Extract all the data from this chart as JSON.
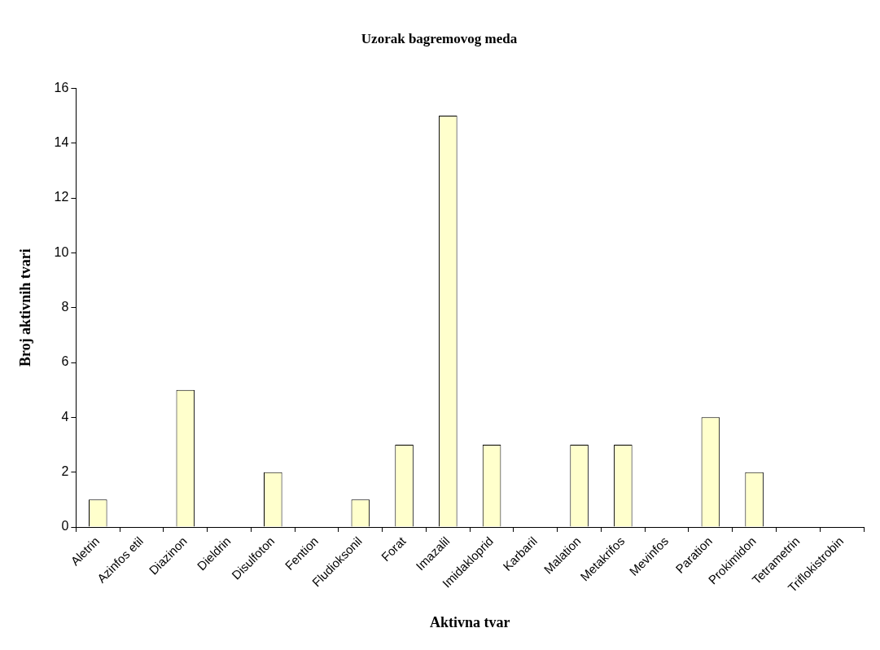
{
  "chart_data": {
    "type": "bar",
    "title": "Uzorak bagremovog meda",
    "xlabel": "Aktivna tvar",
    "ylabel": "Broj aktivnih tvari",
    "categories": [
      "Aletrin",
      "Azinfos etil",
      "Diazinon",
      "Dieldrin",
      "Disulfoton",
      "Fention",
      "Fludioksonil",
      "Forat",
      "Imazalil",
      "Imidakloprid",
      "Karbaril",
      "Malation",
      "Metakrifos",
      "Mevinfos",
      "Paration",
      "Prokimidon",
      "Tetrametrin",
      "Triflokistrobin"
    ],
    "values": [
      1,
      0,
      5,
      0,
      2,
      0,
      1,
      3,
      15,
      3,
      0,
      3,
      3,
      0,
      4,
      2,
      0,
      0
    ],
    "color": "#ffffcc",
    "ylim": [
      0,
      16
    ],
    "yticks": [
      0,
      2,
      4,
      6,
      8,
      10,
      12,
      14,
      16
    ],
    "grid": false,
    "legend": false
  }
}
